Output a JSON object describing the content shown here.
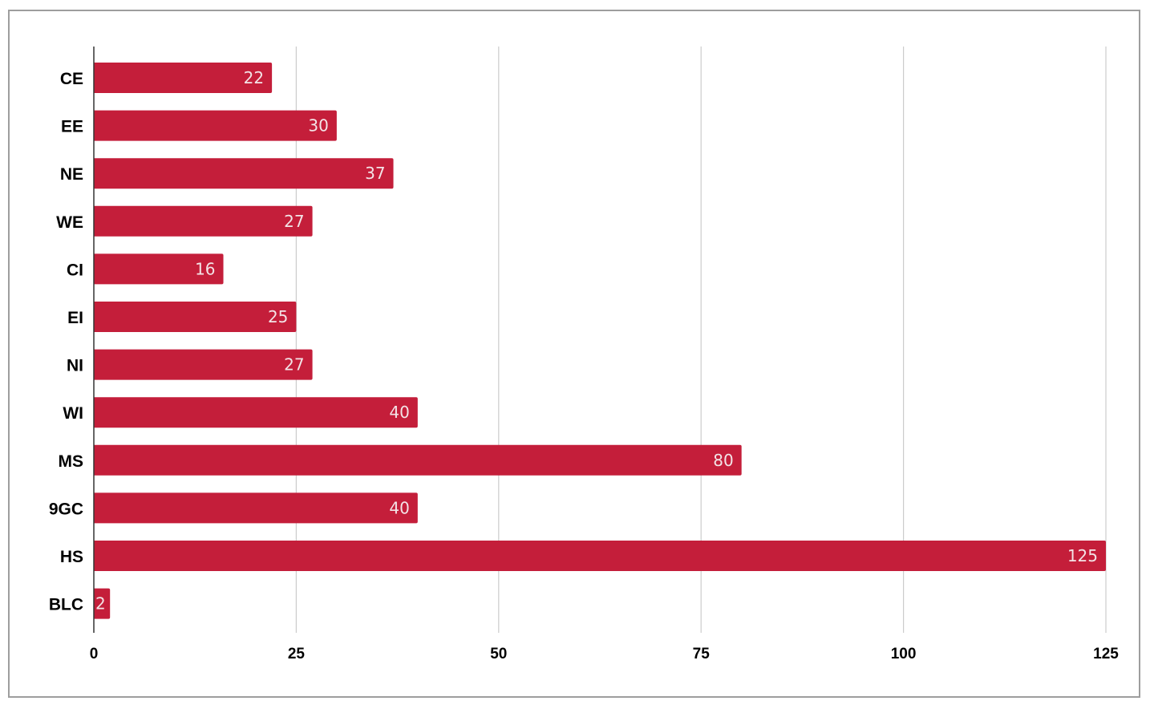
{
  "chart_data": {
    "type": "bar",
    "orientation": "horizontal",
    "title": "",
    "xlabel": "",
    "ylabel": "",
    "categories": [
      "CE",
      "EE",
      "NE",
      "WE",
      "CI",
      "EI",
      "NI",
      "WI",
      "MS",
      "9GC",
      "HS",
      "BLC"
    ],
    "values": [
      22,
      30,
      37,
      27,
      16,
      25,
      27,
      40,
      80,
      40,
      125,
      2
    ],
    "data_labels": [
      "22",
      "30",
      "37",
      "27",
      "16",
      "25",
      "27",
      "40",
      "80",
      "40",
      "125",
      "2"
    ],
    "xlim": [
      0,
      125
    ],
    "xticks": [
      0,
      25,
      50,
      75,
      100,
      125
    ],
    "xtick_labels": [
      "0",
      "25",
      "50",
      "75",
      "100",
      "125"
    ],
    "grid": "vertical",
    "legend": "none",
    "bar_color": "#c41e3a",
    "gridline_color": "#cccccc",
    "axis_color": "#333333"
  }
}
